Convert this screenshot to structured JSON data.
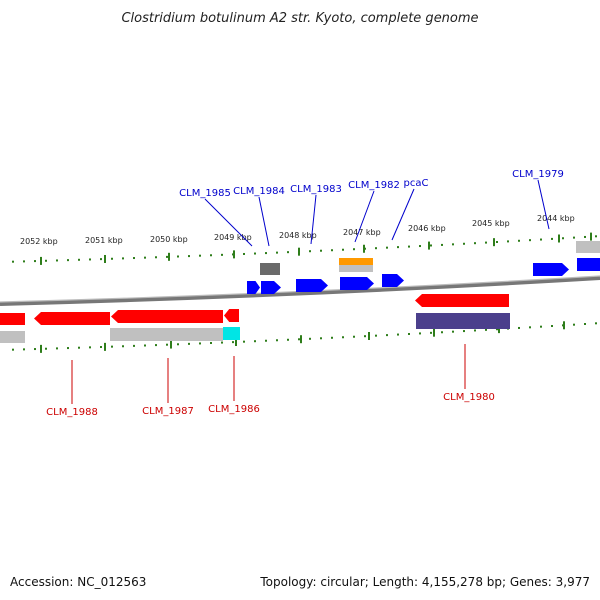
{
  "title": "Clostridium botulinum A2 str. Kyoto, complete genome",
  "footer": {
    "accession": "Accession: NC_012563",
    "summary": "Topology: circular; Length: 4,155,278 bp; Genes: 3,977"
  },
  "colors": {
    "forward_gene": "#0000ff",
    "reverse_gene": "#ff0000",
    "forward_label": "#0000cc",
    "reverse_label": "#cc0000",
    "tick": "#2e7d1a",
    "backbone": "#8a8a8a",
    "pseudo_gray": "#c0c0c0",
    "dark_gray": "#6a6a6a",
    "orange": "#ff9900",
    "cyan": "#00e5e5",
    "navy": "#4b3f8c"
  },
  "ticks": [
    "2052 kbp",
    "2051 kbp",
    "2050 kbp",
    "2049 kbp",
    "2048 kbp",
    "2047 kbp",
    "2046 kbp",
    "2045 kbp",
    "2044 kbp"
  ],
  "forward_labels": [
    "CLM_1985",
    "CLM_1984",
    "CLM_1983",
    "CLM_1982",
    "pcaC",
    "CLM_1979"
  ],
  "reverse_labels": [
    "CLM_1988",
    "CLM_1987",
    "CLM_1986",
    "CLM_1980"
  ]
}
